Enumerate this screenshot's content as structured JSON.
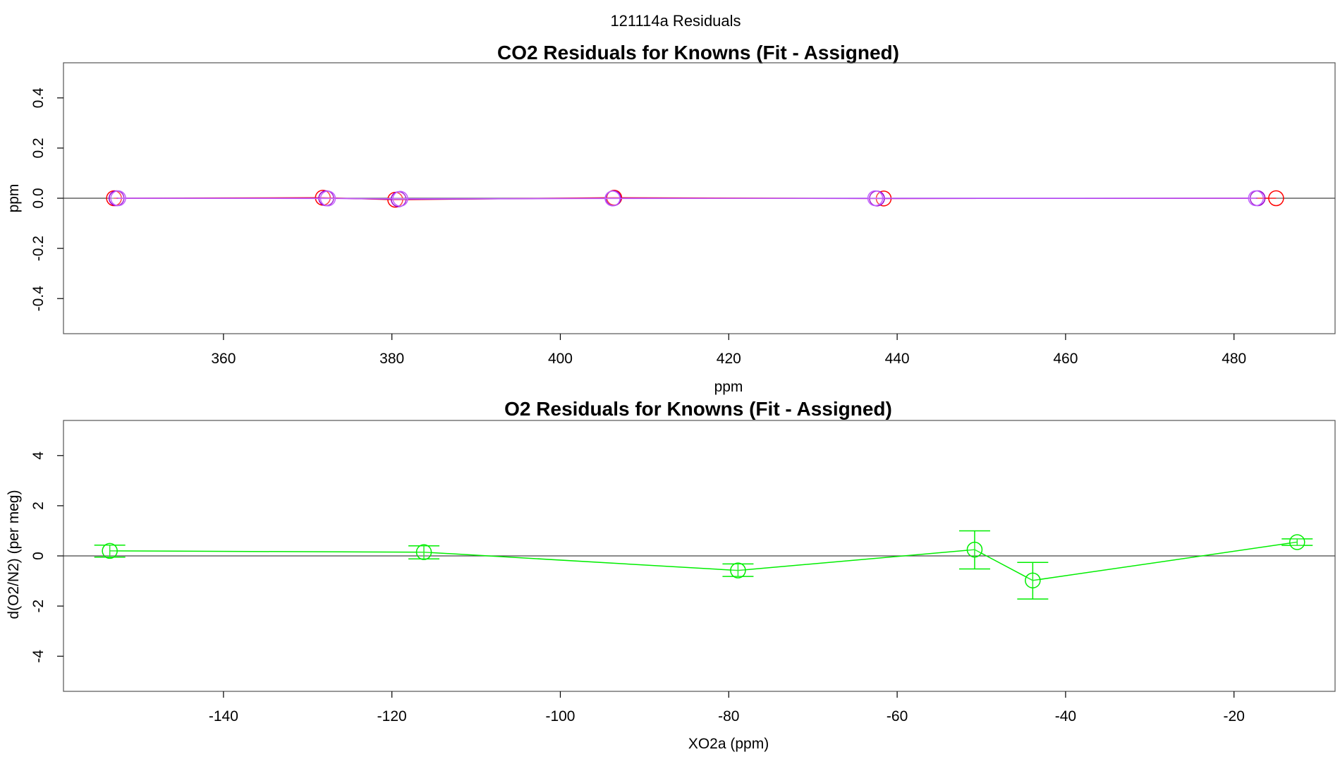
{
  "page": {
    "title": "121114a  Residuals"
  },
  "chart_data": [
    {
      "type": "line",
      "title": "CO2 Residuals for Knowns (Fit - Assigned)",
      "xlabel": "ppm",
      "ylabel": "ppm",
      "xlim": [
        341,
        492
      ],
      "ylim": [
        -0.54,
        0.54
      ],
      "xticks": [
        360,
        380,
        400,
        420,
        440,
        460,
        480
      ],
      "yticks": [
        -0.4,
        -0.2,
        0.0,
        0.2,
        0.4
      ],
      "ytick_labels": [
        "-0.4",
        "-0.2",
        "0.0",
        "0.2",
        "0.4"
      ],
      "reference_line_y": 0,
      "grid": false,
      "legend": "none",
      "series": [
        {
          "color": "#ff0000",
          "x": [
            347.0,
            371.8,
            380.4,
            406.4,
            438.4,
            485.0
          ],
          "y": [
            0.0,
            0.002,
            -0.006,
            0.002,
            -0.001,
            0.0
          ]
        },
        {
          "color": "#9900cc",
          "x": [
            347.3,
            372.2,
            380.8,
            406.3,
            437.6,
            482.8
          ],
          "y": [
            0.0,
            0.0,
            -0.004,
            0.0,
            -0.001,
            0.0
          ]
        },
        {
          "color": "#c060ff",
          "x": [
            347.5,
            372.4,
            381.0,
            406.2,
            437.4,
            482.6
          ],
          "y": [
            0.0,
            -0.001,
            -0.002,
            -0.001,
            0.0,
            0.0
          ]
        }
      ]
    },
    {
      "type": "line",
      "title": "O2 Residuals for Knowns (Fit - Assigned)",
      "xlabel": "XO2a (ppm)",
      "ylabel": "d(O2/N2) (per meg)",
      "xlim": [
        -159,
        -8
      ],
      "ylim": [
        -5.4,
        5.4
      ],
      "xticks": [
        -140,
        -120,
        -100,
        -80,
        -60,
        -40,
        -20
      ],
      "yticks": [
        -4,
        -2,
        0,
        2,
        4
      ],
      "reference_line_y": 0,
      "grid": false,
      "legend": "none",
      "series": [
        {
          "color": "#00ee00",
          "x": [
            -153.5,
            -116.2,
            -78.9,
            -50.8,
            -43.9,
            -12.5
          ],
          "y": [
            0.2,
            0.15,
            -0.58,
            0.25,
            -0.98,
            0.55
          ],
          "err_low": [
            -0.05,
            -0.12,
            -0.82,
            -0.52,
            -1.72,
            0.42
          ],
          "err_high": [
            0.43,
            0.4,
            -0.32,
            1.0,
            -0.26,
            0.68
          ]
        }
      ]
    }
  ]
}
